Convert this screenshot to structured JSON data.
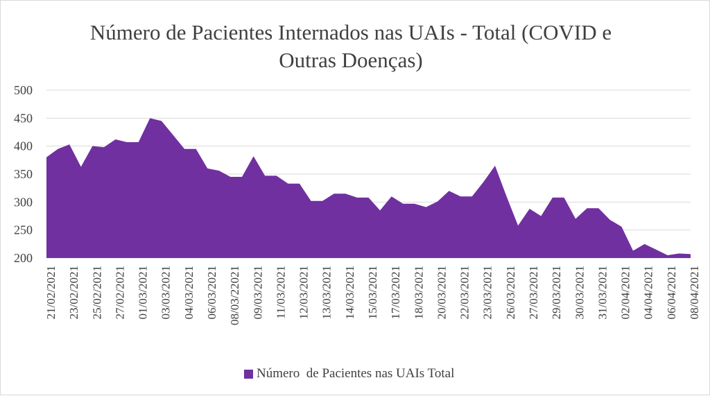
{
  "chart_data": {
    "type": "area",
    "title": "Número de Pacientes Internados nas UAIs - Total (COVID e Outras Doenças)",
    "xlabel": "",
    "ylabel": "",
    "ylim": [
      200,
      500
    ],
    "yticks": [
      200,
      250,
      300,
      350,
      400,
      450,
      500
    ],
    "grid": true,
    "legend_position": "bottom",
    "color": "#7030a0",
    "x_tick_labels": [
      "21/02/2021",
      "23/02/2021",
      "25/02/2021",
      "27/02/2021",
      "01/03/2021",
      "03/03/2021",
      "04/03/2021",
      "06/03/2021",
      "08/03/22021",
      "09/03/2021",
      "11/03/2021",
      "12/03/2021",
      "13/03/2021",
      "14/03/2021",
      "15/03/2021",
      "17/03/2021",
      "18/03/2021",
      "20/03/2021",
      "22/03/2021",
      "23/03/2021",
      "26/03/2021",
      "27/03/2021",
      "29/03/2021",
      "30/03/2021",
      "31/03/2021",
      "02/04/2021",
      "04/04/2021",
      "06/04/2021",
      "08/04/2021"
    ],
    "series": [
      {
        "name": "Número  de Pacientes nas UAIs Total",
        "values": [
          380,
          395,
          403,
          363,
          400,
          398,
          412,
          407,
          407,
          450,
          445,
          420,
          395,
          395,
          360,
          356,
          345,
          345,
          382,
          347,
          347,
          333,
          333,
          302,
          302,
          315,
          315,
          308,
          308,
          285,
          310,
          297,
          297,
          291,
          301,
          320,
          310,
          310,
          336,
          365,
          310,
          258,
          288,
          275,
          308,
          308,
          270,
          289,
          289,
          268,
          256,
          213,
          225,
          215,
          205,
          208,
          207
        ]
      }
    ]
  }
}
